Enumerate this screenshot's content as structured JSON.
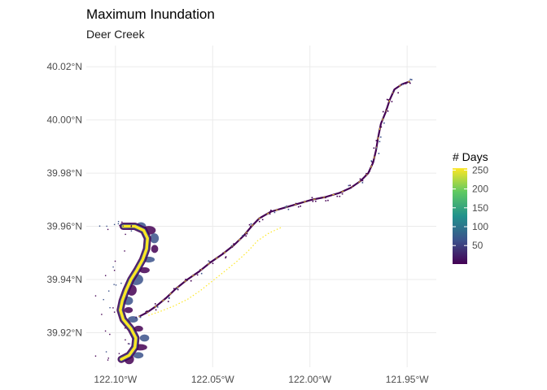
{
  "chart_data": {
    "type": "map",
    "title": "Maximum Inundation",
    "subtitle": "Deer Creek",
    "x_ticks": [
      {
        "value": -122.1,
        "label": "122.10°W"
      },
      {
        "value": -122.05,
        "label": "122.05°W"
      },
      {
        "value": -122.0,
        "label": "122.00°W"
      },
      {
        "value": -121.95,
        "label": "121.95°W"
      }
    ],
    "y_ticks": [
      {
        "value": 39.92,
        "label": "39.92°N"
      },
      {
        "value": 39.94,
        "label": "39.94°N"
      },
      {
        "value": 39.96,
        "label": "39.96°N"
      },
      {
        "value": 39.98,
        "label": "39.98°N"
      },
      {
        "value": 40.0,
        "label": "40.00°N"
      },
      {
        "value": 40.02,
        "label": "40.02°N"
      }
    ],
    "xlim": [
      -122.115,
      -121.935
    ],
    "ylim": [
      39.907,
      40.028
    ],
    "grid": true,
    "legend": {
      "title": "# Days",
      "position": "right",
      "min": 1,
      "max": 255,
      "breaks": [
        50,
        100,
        150,
        200,
        250
      ],
      "palette": [
        "#440154",
        "#3b528b",
        "#21918c",
        "#5ec962",
        "#fde725"
      ]
    },
    "creek_main": [
      [
        -121.9485,
        40.0145
      ],
      [
        -121.9525,
        40.0135
      ],
      [
        -121.9565,
        40.0115
      ],
      [
        -121.959,
        40.0075
      ],
      [
        -121.961,
        40.003
      ],
      [
        -121.9635,
        39.9985
      ],
      [
        -121.965,
        39.993
      ],
      [
        -121.966,
        39.9885
      ],
      [
        -121.9675,
        39.984
      ],
      [
        -121.97,
        39.98
      ],
      [
        -121.974,
        39.977
      ],
      [
        -121.979,
        39.9745
      ],
      [
        -121.985,
        39.9725
      ],
      [
        -121.992,
        39.971
      ],
      [
        -121.999,
        39.97
      ],
      [
        -122.006,
        39.9685
      ],
      [
        -122.013,
        39.967
      ],
      [
        -122.02,
        39.9655
      ],
      [
        -122.026,
        39.963
      ],
      [
        -122.03,
        39.96
      ],
      [
        -122.034,
        39.9565
      ],
      [
        -122.039,
        39.953
      ],
      [
        -122.045,
        39.9495
      ],
      [
        -122.051,
        39.9465
      ],
      [
        -122.057,
        39.943
      ],
      [
        -122.063,
        39.94
      ],
      [
        -122.069,
        39.9365
      ],
      [
        -122.074,
        39.933
      ],
      [
        -122.079,
        39.93
      ],
      [
        -122.084,
        39.9275
      ],
      [
        -122.088,
        39.926
      ]
    ],
    "creek_south": [
      [
        -122.015,
        39.9595
      ],
      [
        -122.021,
        39.9575
      ],
      [
        -122.027,
        39.9545
      ],
      [
        -122.032,
        39.9505
      ],
      [
        -122.038,
        39.9465
      ],
      [
        -122.044,
        39.943
      ],
      [
        -122.05,
        39.9395
      ],
      [
        -122.056,
        39.936
      ],
      [
        -122.063,
        39.9325
      ],
      [
        -122.07,
        39.93
      ],
      [
        -122.077,
        39.928
      ],
      [
        -122.083,
        39.9265
      ]
    ],
    "creek_loop": [
      [
        -122.096,
        39.96
      ],
      [
        -122.09,
        39.96
      ],
      [
        -122.0855,
        39.9585
      ],
      [
        -122.0835,
        39.9555
      ],
      [
        -122.084,
        39.9515
      ],
      [
        -122.086,
        39.9475
      ],
      [
        -122.089,
        39.9435
      ],
      [
        -122.092,
        39.94
      ],
      [
        -122.0945,
        39.936
      ],
      [
        -122.0965,
        39.932
      ],
      [
        -122.0975,
        39.9285
      ],
      [
        -122.096,
        39.925
      ],
      [
        -122.092,
        39.9215
      ],
      [
        -122.0895,
        39.918
      ],
      [
        -122.09,
        39.9145
      ],
      [
        -122.093,
        39.9115
      ],
      [
        -122.097,
        39.91
      ]
    ]
  }
}
